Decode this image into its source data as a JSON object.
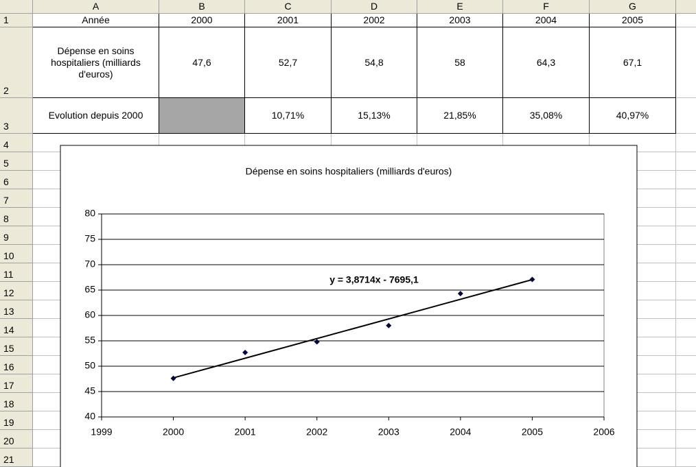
{
  "sheet": {
    "columns": [
      "A",
      "B",
      "C",
      "D",
      "E",
      "F",
      "G"
    ],
    "row_numbers": [
      1,
      2,
      3,
      4,
      5,
      6,
      7,
      8,
      9,
      10,
      11,
      12,
      13,
      14,
      15,
      16,
      17,
      18,
      19,
      20,
      21
    ],
    "rows": [
      [
        "Année",
        "2000",
        "2001",
        "2002",
        "2003",
        "2004",
        "2005"
      ],
      [
        "Dépense en soins hospitaliers (milliards d'euros)",
        "47,6",
        "52,7",
        "54,8",
        "58",
        "64,3",
        "67,1"
      ],
      [
        "Evolution depuis 2000",
        null,
        "10,71%",
        "15,13%",
        "21,85%",
        "35,08%",
        "40,97%"
      ]
    ]
  },
  "chart_data": {
    "type": "scatter",
    "title": "Dépense en soins hospitaliers (milliards d'euros)",
    "x": [
      2000,
      2001,
      2002,
      2003,
      2004,
      2005
    ],
    "values": [
      47.6,
      52.7,
      54.8,
      58,
      64.3,
      67.1
    ],
    "color": "#000040",
    "xlim": [
      1999,
      2006
    ],
    "xticks": [
      1999,
      2000,
      2001,
      2002,
      2003,
      2004,
      2005,
      2006
    ],
    "ylim": [
      40,
      80
    ],
    "yticks": [
      40,
      45,
      50,
      55,
      60,
      65,
      70,
      75,
      80
    ],
    "grid": true,
    "trendline": {
      "label": "y = 3,8714x - 7695,1",
      "slope": 3.8714,
      "intercept": -7695.1,
      "color": "#000000"
    }
  }
}
